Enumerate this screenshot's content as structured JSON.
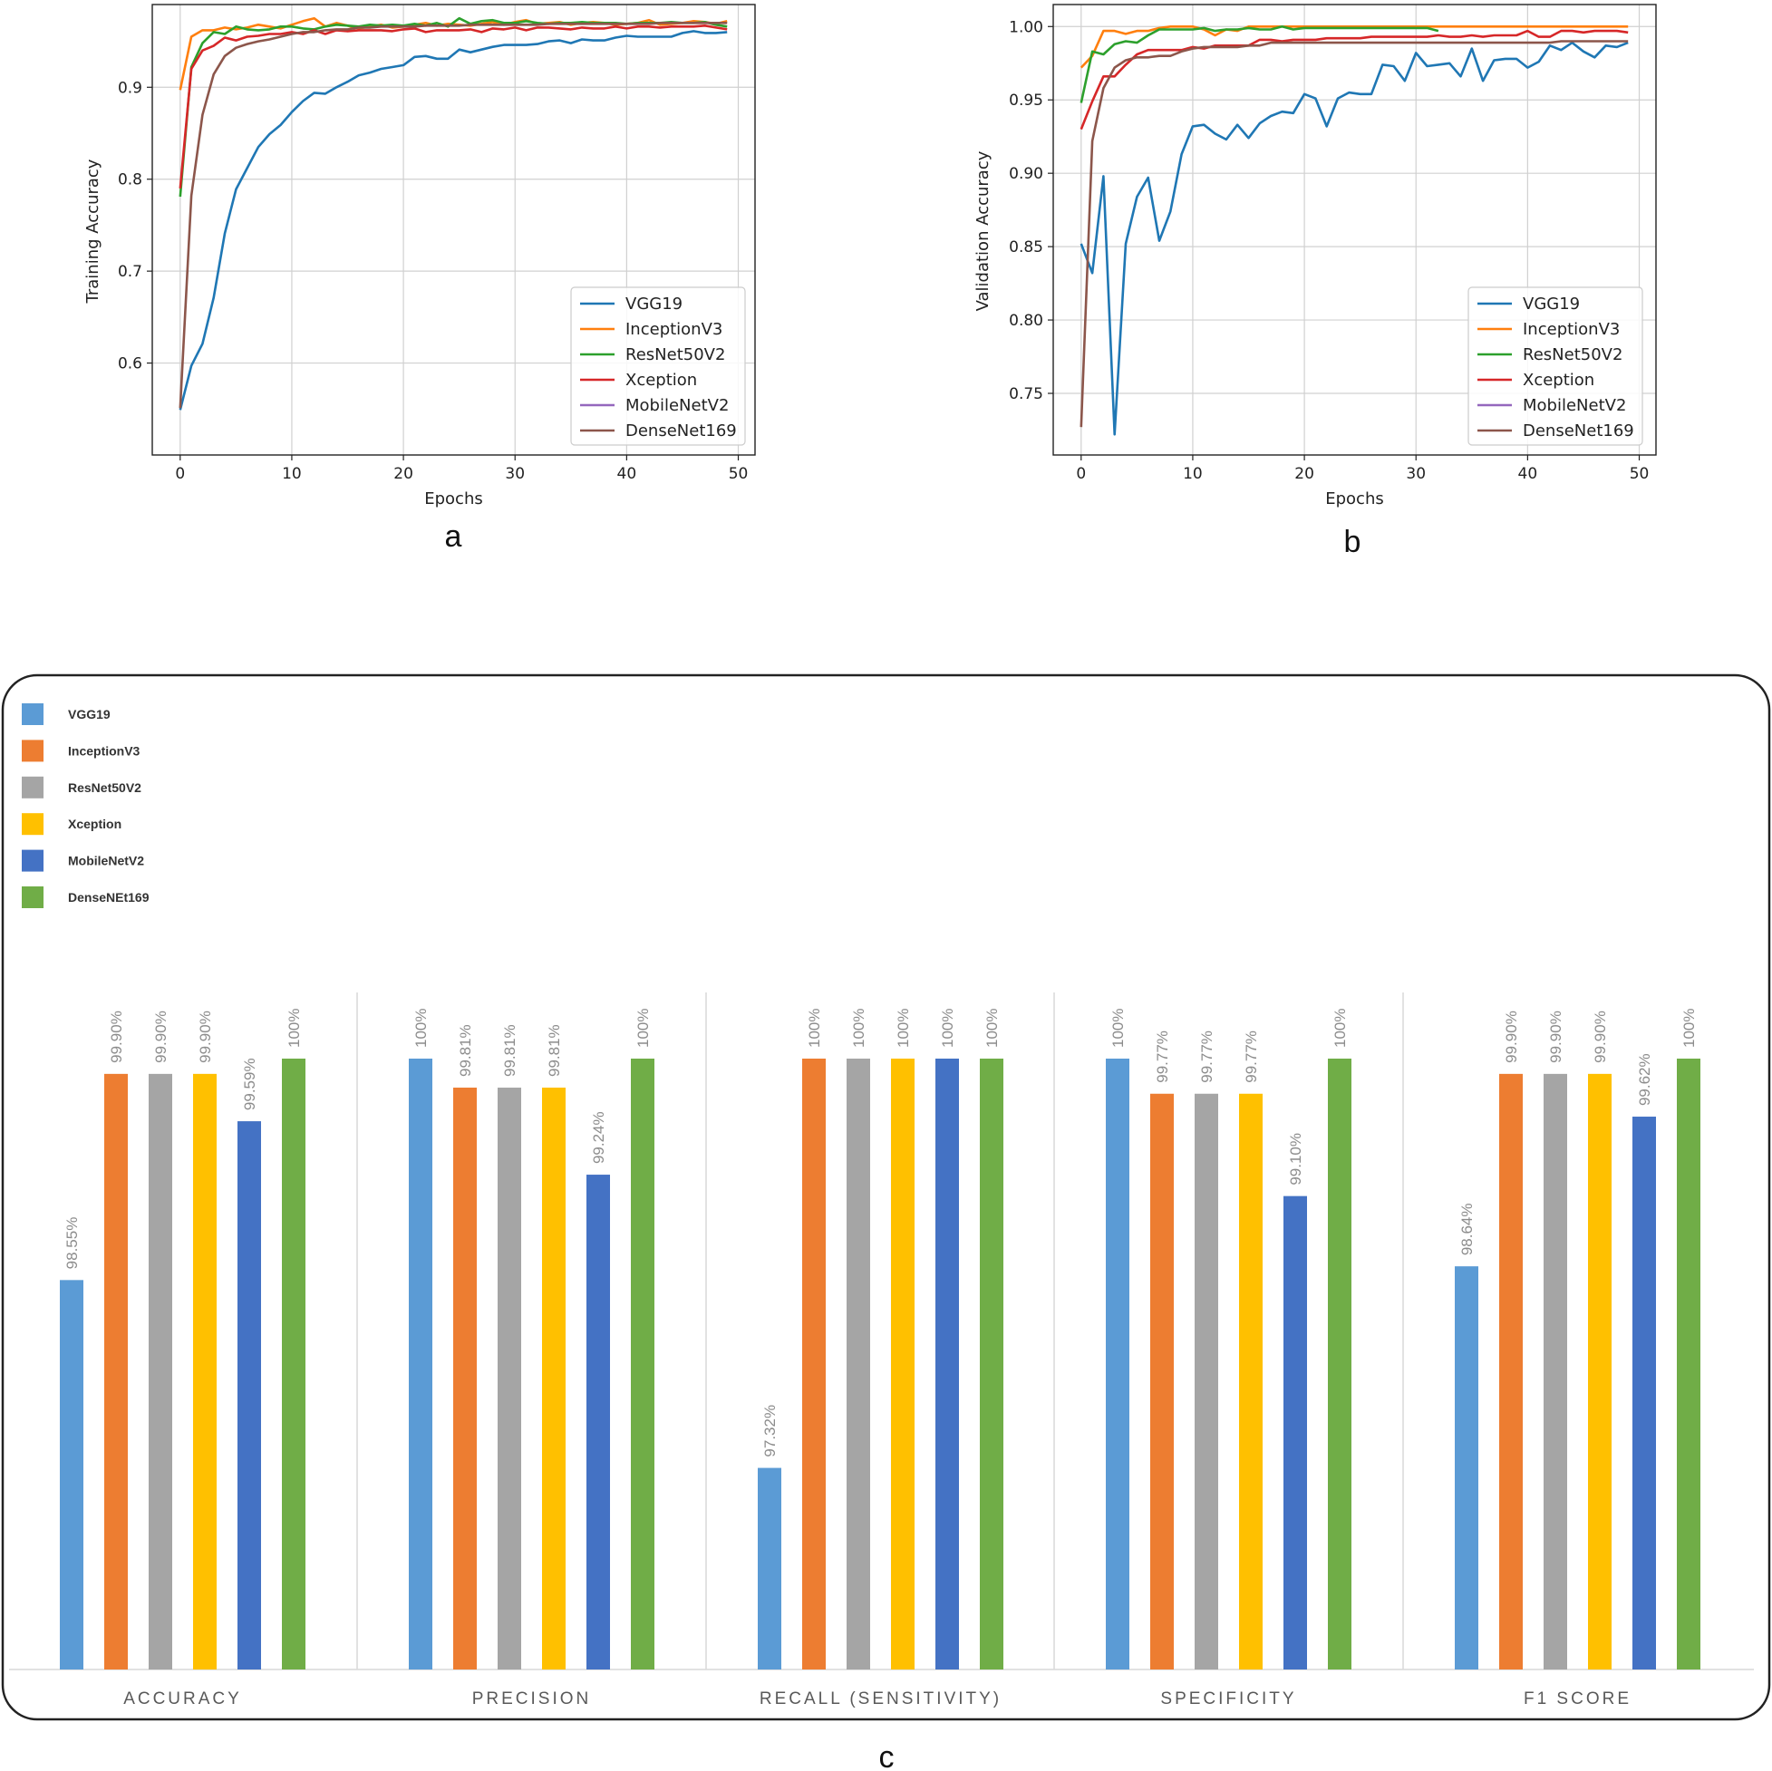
{
  "chart_data": [
    {
      "type": "line",
      "panel_label": "a",
      "xlabel": "Epochs",
      "ylabel": "Training Accuracy",
      "xlim": [
        -2.5,
        51.5
      ],
      "ylim": [
        0.5,
        0.99
      ],
      "xticks": [
        0,
        10,
        20,
        30,
        40,
        50
      ],
      "yticks": [
        0.6,
        0.7,
        0.8,
        0.9
      ],
      "ytick_labels": [
        "0.6",
        "0.7",
        "0.8",
        "0.9"
      ],
      "grid": true,
      "legend_position": "lower-right",
      "series": [
        {
          "name": "VGG19",
          "color": "#1f77b4",
          "values": [
            0.549,
            0.597,
            0.621,
            0.671,
            0.741,
            0.789,
            0.812,
            0.835,
            0.849,
            0.859,
            0.873,
            0.885,
            0.894,
            0.893,
            0.9,
            0.906,
            0.913,
            0.916,
            0.92,
            0.922,
            0.924,
            0.933,
            0.934,
            0.931,
            0.931,
            0.941,
            0.938,
            0.941,
            0.944,
            0.946,
            0.946,
            0.946,
            0.947,
            0.95,
            0.951,
            0.948,
            0.952,
            0.951,
            0.951,
            0.954,
            0.956,
            0.955,
            0.955,
            0.955,
            0.955,
            0.959,
            0.961,
            0.959,
            0.959,
            0.96
          ]
        },
        {
          "name": "InceptionV3",
          "color": "#ff7f0e",
          "values": [
            0.897,
            0.955,
            0.962,
            0.962,
            0.965,
            0.963,
            0.965,
            0.968,
            0.966,
            0.964,
            0.968,
            0.972,
            0.975,
            0.966,
            0.97,
            0.967,
            0.964,
            0.966,
            0.968,
            0.965,
            0.966,
            0.968,
            0.97,
            0.967,
            0.969,
            0.968,
            0.967,
            0.969,
            0.971,
            0.968,
            0.971,
            0.973,
            0.969,
            0.97,
            0.971,
            0.968,
            0.97,
            0.971,
            0.97,
            0.968,
            0.969,
            0.97,
            0.973,
            0.968,
            0.969,
            0.97,
            0.972,
            0.971,
            0.969,
            0.972
          ]
        },
        {
          "name": "ResNet50V2",
          "color": "#2ca02c",
          "values": [
            0.781,
            0.922,
            0.948,
            0.96,
            0.958,
            0.966,
            0.963,
            0.962,
            0.963,
            0.966,
            0.966,
            0.964,
            0.963,
            0.966,
            0.968,
            0.967,
            0.966,
            0.968,
            0.967,
            0.968,
            0.967,
            0.969,
            0.967,
            0.97,
            0.966,
            0.975,
            0.969,
            0.972,
            0.973,
            0.97,
            0.97,
            0.972,
            0.97,
            0.969,
            0.97,
            0.97,
            0.971,
            0.97,
            0.97,
            0.97,
            0.969,
            0.97,
            0.97,
            0.97,
            0.971,
            0.97,
            0.97,
            0.971,
            0.968,
            0.966
          ]
        },
        {
          "name": "Xception",
          "color": "#d62728",
          "values": [
            0.79,
            0.92,
            0.94,
            0.945,
            0.954,
            0.951,
            0.955,
            0.956,
            0.958,
            0.958,
            0.96,
            0.958,
            0.962,
            0.958,
            0.962,
            0.961,
            0.962,
            0.962,
            0.962,
            0.961,
            0.963,
            0.964,
            0.96,
            0.962,
            0.962,
            0.962,
            0.963,
            0.96,
            0.964,
            0.963,
            0.965,
            0.962,
            0.965,
            0.965,
            0.964,
            0.963,
            0.965,
            0.964,
            0.964,
            0.966,
            0.964,
            0.966,
            0.966,
            0.965,
            0.966,
            0.966,
            0.966,
            0.967,
            0.965,
            0.963
          ]
        },
        {
          "name": "MobileNetV2",
          "color": "#9467bd",
          "values": []
        },
        {
          "name": "DenseNet169",
          "color": "#8c564b",
          "values": [
            0.551,
            0.782,
            0.87,
            0.914,
            0.934,
            0.943,
            0.947,
            0.95,
            0.952,
            0.955,
            0.958,
            0.96,
            0.96,
            0.962,
            0.963,
            0.963,
            0.965,
            0.965,
            0.966,
            0.966,
            0.966,
            0.966,
            0.967,
            0.967,
            0.967,
            0.967,
            0.968,
            0.968,
            0.968,
            0.968,
            0.968,
            0.968,
            0.968,
            0.969,
            0.969,
            0.969,
            0.969,
            0.969,
            0.969,
            0.969,
            0.969,
            0.969,
            0.969,
            0.97,
            0.97,
            0.97,
            0.97,
            0.97,
            0.97,
            0.97
          ]
        }
      ]
    },
    {
      "type": "line",
      "panel_label": "b",
      "xlabel": "Epochs",
      "ylabel": "Validation Accuracy",
      "xlim": [
        -2.5,
        51.5
      ],
      "ylim": [
        0.708,
        1.015
      ],
      "xticks": [
        0,
        10,
        20,
        30,
        40,
        50
      ],
      "yticks": [
        0.75,
        0.8,
        0.85,
        0.9,
        0.95,
        1.0
      ],
      "ytick_labels": [
        "0.75",
        "0.80",
        "0.85",
        "0.90",
        "0.95",
        "1.00"
      ],
      "grid": true,
      "legend_position": "lower-right",
      "series": [
        {
          "name": "VGG19",
          "color": "#1f77b4",
          "values": [
            0.852,
            0.832,
            0.898,
            0.722,
            0.852,
            0.884,
            0.897,
            0.854,
            0.874,
            0.913,
            0.932,
            0.933,
            0.927,
            0.923,
            0.933,
            0.924,
            0.934,
            0.939,
            0.942,
            0.941,
            0.954,
            0.951,
            0.932,
            0.951,
            0.955,
            0.954,
            0.954,
            0.974,
            0.973,
            0.963,
            0.982,
            0.973,
            0.974,
            0.975,
            0.966,
            0.985,
            0.963,
            0.977,
            0.978,
            0.978,
            0.972,
            0.976,
            0.987,
            0.984,
            0.989,
            0.983,
            0.979,
            0.987,
            0.986,
            0.989
          ]
        },
        {
          "name": "InceptionV3",
          "color": "#ff7f0e",
          "values": [
            0.972,
            0.98,
            0.997,
            0.997,
            0.995,
            0.997,
            0.997,
            0.999,
            1.0,
            1.0,
            1.0,
            0.998,
            0.994,
            0.998,
            0.997,
            1.0,
            1.0,
            1.0,
            1.0,
            1.0,
            1.0,
            1.0,
            1.0,
            1.0,
            1.0,
            1.0,
            1.0,
            1.0,
            1.0,
            1.0,
            1.0,
            1.0,
            1.0,
            1.0,
            1.0,
            1.0,
            1.0,
            1.0,
            1.0,
            1.0,
            1.0,
            1.0,
            1.0,
            1.0,
            1.0,
            1.0,
            1.0,
            1.0,
            1.0,
            1.0
          ]
        },
        {
          "name": "ResNet50V2",
          "color": "#2ca02c",
          "values": [
            0.948,
            0.983,
            0.981,
            0.988,
            0.99,
            0.989,
            0.994,
            0.998,
            0.998,
            0.998,
            0.998,
            0.999,
            0.997,
            0.998,
            0.998,
            0.999,
            0.998,
            0.998,
            1.0,
            0.998,
            0.999,
            0.999,
            0.999,
            0.999,
            0.999,
            0.999,
            0.999,
            0.999,
            0.999,
            0.999,
            0.999,
            0.999,
            0.997
          ]
        },
        {
          "name": "Xception",
          "color": "#d62728",
          "values": [
            0.93,
            0.949,
            0.966,
            0.966,
            0.974,
            0.981,
            0.984,
            0.984,
            0.984,
            0.984,
            0.986,
            0.985,
            0.987,
            0.987,
            0.987,
            0.987,
            0.991,
            0.991,
            0.99,
            0.991,
            0.991,
            0.991,
            0.992,
            0.992,
            0.992,
            0.992,
            0.993,
            0.993,
            0.993,
            0.993,
            0.993,
            0.993,
            0.994,
            0.993,
            0.993,
            0.994,
            0.993,
            0.994,
            0.994,
            0.994,
            0.997,
            0.993,
            0.993,
            0.997,
            0.997,
            0.996,
            0.997,
            0.997,
            0.997,
            0.996
          ]
        },
        {
          "name": "MobileNetV2",
          "color": "#9467bd",
          "values": []
        },
        {
          "name": "DenseNet169",
          "color": "#8c564b",
          "values": [
            0.727,
            0.922,
            0.958,
            0.972,
            0.977,
            0.979,
            0.979,
            0.98,
            0.98,
            0.983,
            0.985,
            0.986,
            0.986,
            0.986,
            0.986,
            0.987,
            0.987,
            0.989,
            0.989,
            0.989,
            0.989,
            0.989,
            0.989,
            0.989,
            0.989,
            0.989,
            0.989,
            0.989,
            0.989,
            0.989,
            0.989,
            0.989,
            0.989,
            0.989,
            0.989,
            0.989,
            0.989,
            0.989,
            0.989,
            0.989,
            0.989,
            0.989,
            0.989,
            0.99,
            0.99,
            0.99,
            0.99,
            0.99,
            0.99,
            0.99
          ]
        }
      ]
    },
    {
      "type": "bar",
      "panel_label": "c",
      "categories": [
        "ACCURACY",
        "PRECISION",
        "RECALL (SENSITIVITY)",
        "SPECIFICITY",
        "F1 SCORE"
      ],
      "ylim": [
        96.0,
        100.0
      ],
      "grid": false,
      "legend_position": "top-left",
      "series": [
        {
          "name": "VGG19",
          "color": "#5b9bd5",
          "values": [
            98.55,
            100,
            97.32,
            100,
            98.64
          ],
          "labels": [
            "98.55%",
            "100%",
            "97.32%",
            "100%",
            "98.64%"
          ]
        },
        {
          "name": "InceptionV3",
          "color": "#ed7d31",
          "values": [
            99.9,
            99.81,
            100,
            99.77,
            99.9
          ],
          "labels": [
            "99.90%",
            "99.81%",
            "100%",
            "99.77%",
            "99.90%"
          ]
        },
        {
          "name": "ResNet50V2",
          "color": "#a5a5a5",
          "values": [
            99.9,
            99.81,
            100,
            99.77,
            99.9
          ],
          "labels": [
            "99.90%",
            "99.81%",
            "100%",
            "99.77%",
            "99.90%"
          ]
        },
        {
          "name": "Xception",
          "color": "#ffc000",
          "values": [
            99.9,
            99.81,
            100,
            99.77,
            99.9
          ],
          "labels": [
            "99.90%",
            "99.81%",
            "100%",
            "99.77%",
            "99.90%"
          ]
        },
        {
          "name": "MobileNetV2",
          "color": "#4472c4",
          "values": [
            99.59,
            99.24,
            100,
            99.1,
            99.62
          ],
          "labels": [
            "99.59%",
            "99.24%",
            "100%",
            "99.10%",
            "99.62%"
          ]
        },
        {
          "name": "DenseNEt169",
          "color": "#70ad47",
          "values": [
            100,
            100,
            100,
            100,
            100
          ],
          "labels": [
            "100%",
            "100%",
            "100%",
            "100%",
            "100%"
          ]
        }
      ]
    }
  ]
}
